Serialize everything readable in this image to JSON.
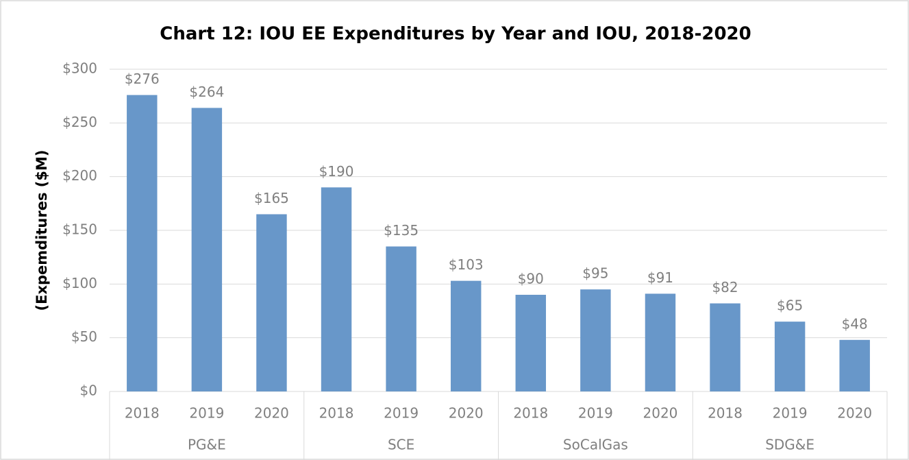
{
  "chart_data": {
    "type": "bar",
    "title": "Chart 12: IOU EE Expenditures by Year and IOU, 2018-2020",
    "y_axis_label": "(Expemditures ($M)",
    "categories": [
      "2018",
      "2019",
      "2020",
      "2018",
      "2019",
      "2020",
      "2018",
      "2019",
      "2020",
      "2018",
      "2019",
      "2020"
    ],
    "category_groups": [
      "PG&E",
      "SCE",
      "SoCalGas",
      "SDG&E"
    ],
    "values": [
      276,
      264,
      165,
      190,
      135,
      103,
      90,
      95,
      91,
      82,
      65,
      48
    ],
    "value_labels": [
      "$276",
      "$264",
      "$165",
      "$190",
      "$135",
      "$103",
      "$90",
      "$95",
      "$91",
      "$82",
      "$65",
      "$48"
    ],
    "color": "#6897c9",
    "ylim": [
      0,
      300
    ],
    "yticks": [
      {
        "value": 0,
        "label": "$0"
      },
      {
        "value": 50,
        "label": "$50"
      },
      {
        "value": 100,
        "label": "$100"
      },
      {
        "value": 150,
        "label": "$150"
      },
      {
        "value": 200,
        "label": "$200"
      },
      {
        "value": 250,
        "label": "$250"
      },
      {
        "value": 300,
        "label": "$300"
      }
    ],
    "grid": true
  }
}
